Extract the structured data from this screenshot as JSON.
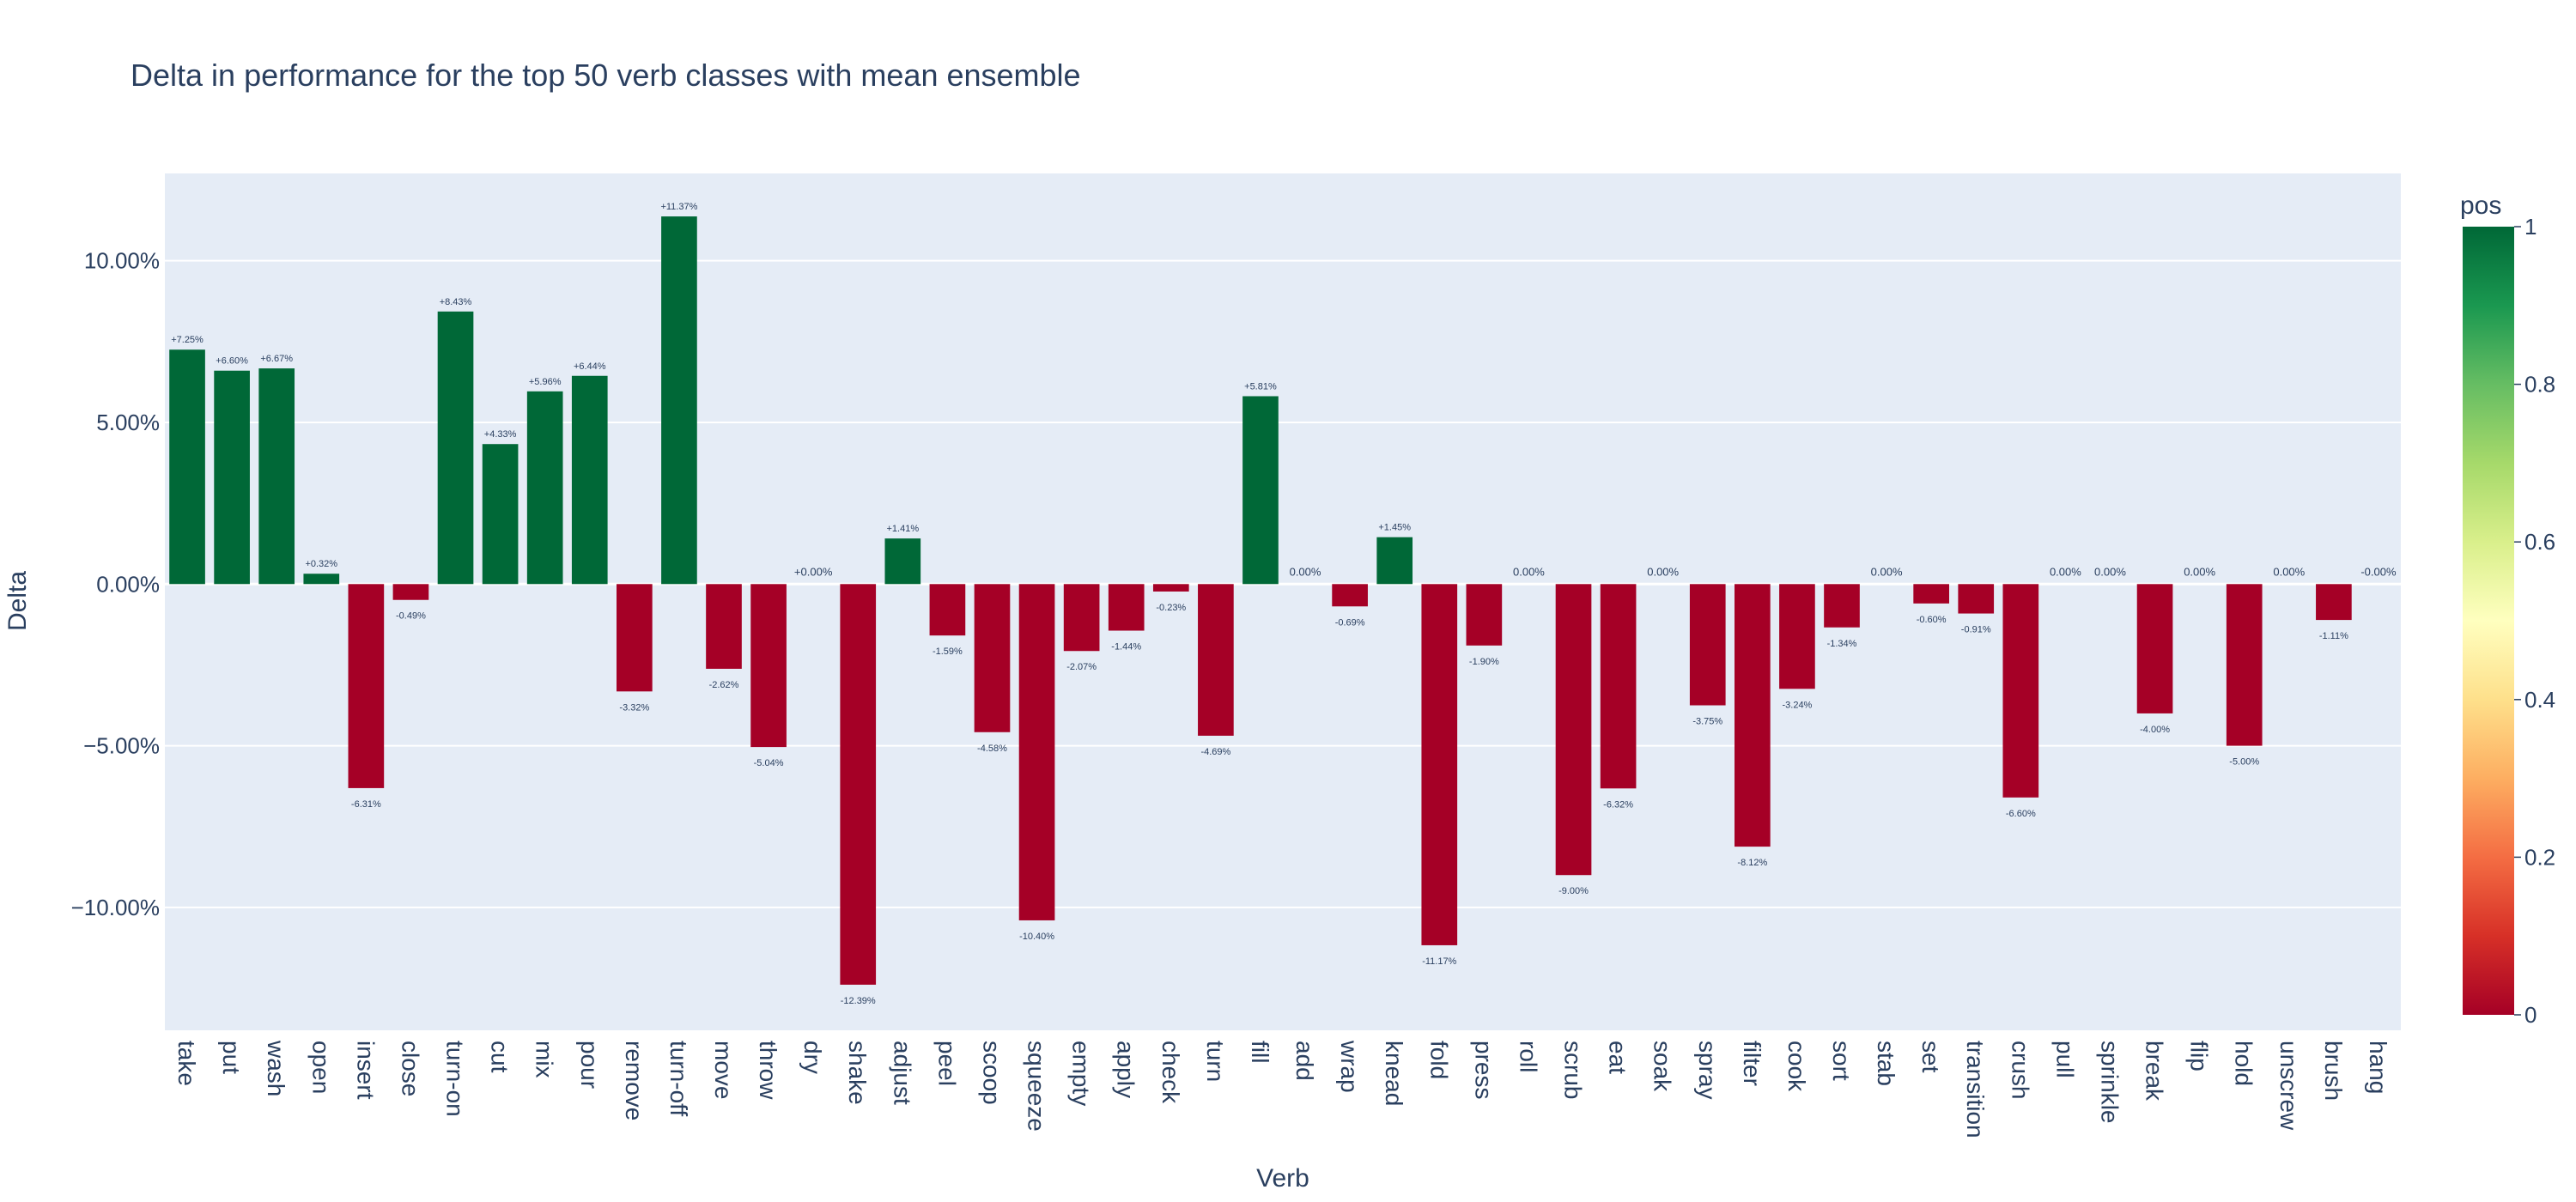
{
  "chart_data": {
    "type": "bar",
    "title": "Delta in performance for the top 50 verb classes with mean ensemble",
    "xlabel": "Verb",
    "ylabel": "Delta",
    "ylim": [
      -0.138,
      0.127
    ],
    "y_ticks": [
      -0.1,
      -0.05,
      0.0,
      0.05,
      0.1
    ],
    "y_tick_labels": [
      "−10.00%",
      "−5.00%",
      "0.00%",
      "5.00%",
      "10.00%"
    ],
    "grid": true,
    "legend": "none",
    "colorbar": {
      "title": "pos",
      "ticks": [
        0,
        0.2,
        0.4,
        0.6,
        0.8,
        1
      ],
      "tick_labels": [
        "0",
        "0.2",
        "0.4",
        "0.6",
        "0.8",
        "1"
      ],
      "colorscale": [
        "#a50026",
        "#d73027",
        "#f46d43",
        "#fdae61",
        "#fee08b",
        "#ffffbf",
        "#d9ef8b",
        "#a6d96a",
        "#66bd63",
        "#1a9850",
        "#006837"
      ]
    },
    "colors": {
      "positive": "#006837",
      "negative": "#a50026",
      "plot_bg": "#e5ecf6"
    },
    "categories": [
      "take",
      "put",
      "wash",
      "open",
      "insert",
      "close",
      "turn-on",
      "cut",
      "mix",
      "pour",
      "remove",
      "turn-off",
      "move",
      "throw",
      "dry",
      "shake",
      "adjust",
      "peel",
      "scoop",
      "squeeze",
      "empty",
      "apply",
      "check",
      "turn",
      "fill",
      "add",
      "wrap",
      "knead",
      "fold",
      "press",
      "roll",
      "scrub",
      "eat",
      "soak",
      "spray",
      "filter",
      "cook",
      "sort",
      "stab",
      "set",
      "transition",
      "crush",
      "pull",
      "sprinkle",
      "break",
      "flip",
      "hold",
      "unscrew",
      "brush",
      "hang"
    ],
    "values": [
      0.0725,
      0.066,
      0.0667,
      0.0032,
      -0.0631,
      -0.0049,
      0.0843,
      0.0433,
      0.0596,
      0.0644,
      -0.0332,
      0.1137,
      -0.0262,
      -0.0504,
      0.0,
      -0.1239,
      0.0141,
      -0.0159,
      -0.0458,
      -0.104,
      -0.0207,
      -0.0144,
      -0.0023,
      -0.0469,
      0.0581,
      0.0,
      -0.0069,
      0.0145,
      -0.1117,
      -0.019,
      0.0,
      -0.09,
      -0.0632,
      0.0,
      -0.0375,
      -0.0812,
      -0.0324,
      -0.0134,
      0.0,
      -0.006,
      -0.0091,
      -0.066,
      0.0,
      0.0,
      -0.04,
      0.0,
      -0.05,
      0.0,
      -0.0111,
      0.0
    ],
    "pos": [
      1,
      1,
      1,
      1,
      0,
      0,
      1,
      1,
      1,
      1,
      0,
      1,
      0,
      0,
      1,
      0,
      1,
      0,
      0,
      0,
      0,
      0,
      0,
      0,
      1,
      0,
      0,
      1,
      0,
      0,
      0,
      0,
      0,
      0,
      0,
      0,
      0,
      0,
      0,
      0,
      0,
      0,
      0,
      0,
      0,
      0,
      0,
      0,
      0,
      0
    ],
    "data_labels": [
      "+7.25%",
      "+6.60%",
      "+6.67%",
      "+0.32%",
      "-6.31%",
      "-0.49%",
      "+8.43%",
      "+4.33%",
      "+5.96%",
      "+6.44%",
      "-3.32%",
      "+11.37%",
      "-2.62%",
      "-5.04%",
      "+0.00%",
      "-12.39%",
      "+1.41%",
      "-1.59%",
      "-4.58%",
      "-10.40%",
      "-2.07%",
      "-1.44%",
      "-0.23%",
      "-4.69%",
      "+5.81%",
      "0.00%",
      "-0.69%",
      "+1.45%",
      "-11.17%",
      "-1.90%",
      "0.00%",
      "-9.00%",
      "-6.32%",
      "0.00%",
      "-3.75%",
      "-8.12%",
      "-3.24%",
      "-1.34%",
      "0.00%",
      "-0.60%",
      "-0.91%",
      "-6.60%",
      "0.00%",
      "0.00%",
      "-4.00%",
      "0.00%",
      "-5.00%",
      "0.00%",
      "-1.11%",
      "-0.00%"
    ]
  }
}
